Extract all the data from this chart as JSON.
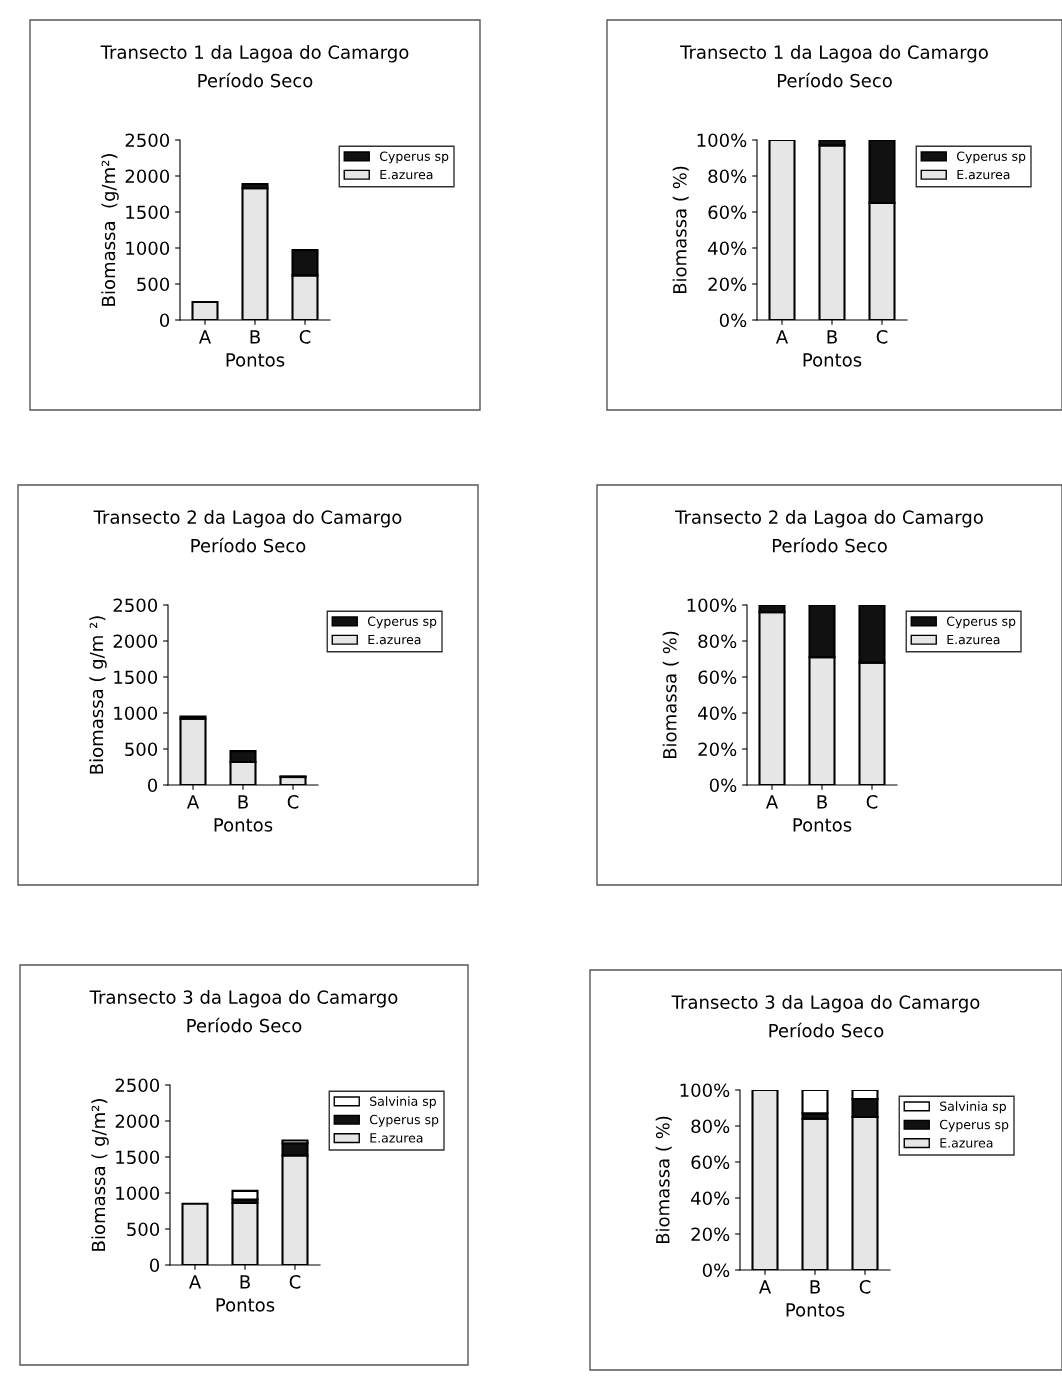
{
  "chart_data": [
    {
      "type": "bar",
      "stacked": true,
      "title": "Transecto 1 da Lagoa do Camargo\nPeríodo Seco",
      "xlabel": "Pontos",
      "ylabel": "Biomassa  (g/m²)",
      "categories": [
        "A",
        "B",
        "C"
      ],
      "ylim": [
        0,
        2500
      ],
      "yticks": [
        0,
        500,
        1000,
        1500,
        2000,
        2500
      ],
      "legend": "right",
      "grid": false,
      "series": [
        {
          "name": "E.azurea",
          "color": "#e6e6e6",
          "values": [
            250,
            1830,
            620
          ]
        },
        {
          "name": "Cyperus sp",
          "color": "#111111",
          "values": [
            0,
            60,
            350
          ]
        }
      ]
    },
    {
      "type": "bar",
      "stacked": true,
      "title": "Transecto 1 da Lagoa do Camargo\nPeríodo Seco",
      "xlabel": "Pontos",
      "ylabel": "Biomassa ( %)",
      "categories": [
        "A",
        "B",
        "C"
      ],
      "ylim": [
        0,
        100
      ],
      "yticks": [
        {
          "value": 0,
          "label": "0%"
        },
        {
          "value": 20,
          "label": "20%"
        },
        {
          "value": 40,
          "label": "40%"
        },
        {
          "value": 60,
          "label": "60%"
        },
        {
          "value": 80,
          "label": "80%"
        },
        {
          "value": 100,
          "label": "100%"
        }
      ],
      "legend": "right",
      "grid": false,
      "series": [
        {
          "name": "E.azurea",
          "color": "#e6e6e6",
          "values": [
            100,
            97,
            65
          ]
        },
        {
          "name": "Cyperus sp",
          "color": "#111111",
          "values": [
            0,
            3,
            35
          ]
        }
      ]
    },
    {
      "type": "bar",
      "stacked": true,
      "title": "Transecto 2 da Lagoa do Camargo\nPeríodo Seco",
      "xlabel": "Pontos",
      "ylabel": "Biomassa ( g/m ²)",
      "categories": [
        "A",
        "B",
        "C"
      ],
      "ylim": [
        0,
        2500
      ],
      "yticks": [
        0,
        500,
        1000,
        1500,
        2000,
        2500
      ],
      "legend": "right",
      "grid": false,
      "series": [
        {
          "name": "E.azurea",
          "color": "#e6e6e6",
          "values": [
            920,
            320,
            110
          ]
        },
        {
          "name": "Cyperus sp",
          "color": "#111111",
          "values": [
            30,
            150,
            10
          ]
        }
      ]
    },
    {
      "type": "bar",
      "stacked": true,
      "title": "Transecto 2 da Lagoa do Camargo\nPeríodo Seco",
      "xlabel": "Pontos",
      "ylabel": "Biomassa ( %)",
      "categories": [
        "A",
        "B",
        "C"
      ],
      "ylim": [
        0,
        100
      ],
      "yticks": [
        {
          "value": 0,
          "label": "0%"
        },
        {
          "value": 20,
          "label": "20%"
        },
        {
          "value": 40,
          "label": "40%"
        },
        {
          "value": 60,
          "label": "60%"
        },
        {
          "value": 80,
          "label": "80%"
        },
        {
          "value": 100,
          "label": "100%"
        }
      ],
      "legend": "right",
      "grid": false,
      "series": [
        {
          "name": "E.azurea",
          "color": "#e6e6e6",
          "values": [
            96,
            71,
            68
          ]
        },
        {
          "name": "Cyperus sp",
          "color": "#111111",
          "values": [
            4,
            29,
            32
          ]
        }
      ]
    },
    {
      "type": "bar",
      "stacked": true,
      "title": "Transecto 3 da Lagoa do Camargo\nPeríodo Seco",
      "xlabel": "Pontos",
      "ylabel": "Biomassa ( g/m²)",
      "categories": [
        "A",
        "B",
        "C"
      ],
      "ylim": [
        0,
        2500
      ],
      "yticks": [
        0,
        500,
        1000,
        1500,
        2000,
        2500
      ],
      "legend": "right",
      "grid": false,
      "series": [
        {
          "name": "E.azurea",
          "color": "#e6e6e6",
          "values": [
            850,
            860,
            1520
          ]
        },
        {
          "name": "Cyperus sp",
          "color": "#111111",
          "values": [
            0,
            50,
            170
          ]
        },
        {
          "name": "Salvinia sp",
          "color": "#ffffff",
          "values": [
            0,
            120,
            40
          ]
        }
      ]
    },
    {
      "type": "bar",
      "stacked": true,
      "title": "Transecto 3 da Lagoa do Camargo\nPeríodo Seco",
      "xlabel": "Pontos",
      "ylabel": "Biomassa ( %)",
      "categories": [
        "A",
        "B",
        "C"
      ],
      "ylim": [
        0,
        100
      ],
      "yticks": [
        {
          "value": 0,
          "label": "0%"
        },
        {
          "value": 20,
          "label": "20%"
        },
        {
          "value": 40,
          "label": "40%"
        },
        {
          "value": 60,
          "label": "60%"
        },
        {
          "value": 80,
          "label": "80%"
        },
        {
          "value": 100,
          "label": "100%"
        }
      ],
      "legend": "right",
      "grid": false,
      "series": [
        {
          "name": "E.azurea",
          "color": "#e6e6e6",
          "values": [
            100,
            84,
            85
          ]
        },
        {
          "name": "Cyperus sp",
          "color": "#111111",
          "values": [
            0,
            3,
            10
          ]
        },
        {
          "name": "Salvinia sp",
          "color": "#ffffff",
          "values": [
            0,
            13,
            5
          ]
        }
      ]
    }
  ]
}
